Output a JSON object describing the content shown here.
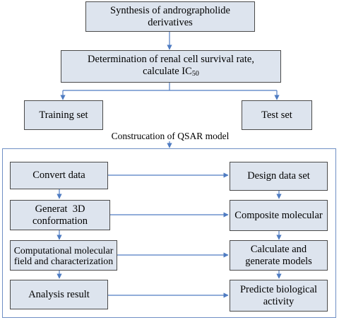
{
  "diagram": {
    "top_box": "Synthesis of andrographolide derivatives",
    "determination": {
      "line1": "Determination of renal cell survival rate,",
      "line2": "calculate IC",
      "subscript": "50"
    },
    "training_set": "Training set",
    "test_set": "Test set",
    "qsar_caption": "Construcation of QSAR model",
    "left_steps": [
      "Convert data",
      "Generat  3D conformation",
      "Computational molecular field and characterization",
      "Analysis result"
    ],
    "right_steps": [
      "Design data set",
      "Composite molecular",
      "Calculate and generate models",
      "Predicte biological activity"
    ]
  }
}
